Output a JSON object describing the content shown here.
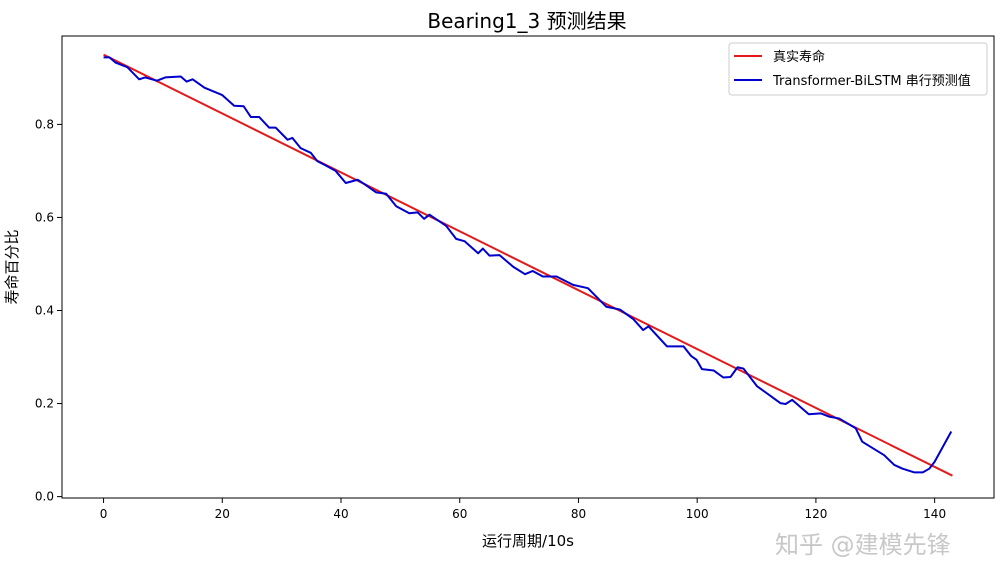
{
  "chart_data": {
    "type": "line",
    "title": "Bearing1_3 预测结果",
    "xlabel": "运行周期/10s",
    "ylabel": "寿命百分比",
    "xlim": [
      -7,
      150
    ],
    "ylim": [
      -0.003,
      0.99
    ],
    "xticks": [
      0,
      20,
      40,
      60,
      80,
      100,
      120,
      140
    ],
    "yticks": [
      0.0,
      0.2,
      0.4,
      0.6,
      0.8
    ],
    "grid": false,
    "legend_position": "top-right",
    "series": [
      {
        "name": "真实寿命",
        "color": "#e31a1c",
        "points": [
          [
            0,
            0.95
          ],
          [
            143,
            0.045
          ]
        ]
      },
      {
        "name": "Transformer-BiLSTM 串行预测值",
        "color": "#0000cc",
        "points": [
          [
            0,
            0.944
          ],
          [
            1,
            0.944
          ],
          [
            2,
            0.933
          ],
          [
            4,
            0.923
          ],
          [
            6,
            0.897
          ],
          [
            7,
            0.901
          ],
          [
            9,
            0.894
          ],
          [
            10.4,
            0.901
          ],
          [
            13,
            0.903
          ],
          [
            14,
            0.892
          ],
          [
            15,
            0.897
          ],
          [
            17,
            0.879
          ],
          [
            20,
            0.863
          ],
          [
            22,
            0.84
          ],
          [
            23.6,
            0.839
          ],
          [
            24.8,
            0.816
          ],
          [
            26.2,
            0.816
          ],
          [
            27.9,
            0.793
          ],
          [
            29,
            0.793
          ],
          [
            31,
            0.767
          ],
          [
            31.8,
            0.771
          ],
          [
            33.2,
            0.749
          ],
          [
            34.9,
            0.739
          ],
          [
            36,
            0.721
          ],
          [
            37.4,
            0.712
          ],
          [
            39.1,
            0.7
          ],
          [
            40.8,
            0.674
          ],
          [
            42.8,
            0.681
          ],
          [
            43.9,
            0.672
          ],
          [
            45.9,
            0.654
          ],
          [
            47.6,
            0.651
          ],
          [
            49.3,
            0.624
          ],
          [
            51.5,
            0.609
          ],
          [
            52.9,
            0.611
          ],
          [
            54,
            0.597
          ],
          [
            54.9,
            0.606
          ],
          [
            57.7,
            0.582
          ],
          [
            59.4,
            0.554
          ],
          [
            60.8,
            0.549
          ],
          [
            63.1,
            0.523
          ],
          [
            63.9,
            0.533
          ],
          [
            65,
            0.518
          ],
          [
            66.7,
            0.519
          ],
          [
            69,
            0.494
          ],
          [
            71,
            0.478
          ],
          [
            72.3,
            0.485
          ],
          [
            74,
            0.473
          ],
          [
            76.3,
            0.473
          ],
          [
            79.1,
            0.455
          ],
          [
            81.6,
            0.448
          ],
          [
            84.7,
            0.408
          ],
          [
            87,
            0.402
          ],
          [
            89.2,
            0.382
          ],
          [
            90.9,
            0.358
          ],
          [
            91.8,
            0.366
          ],
          [
            94.9,
            0.323
          ],
          [
            97.7,
            0.323
          ],
          [
            99,
            0.302
          ],
          [
            99.9,
            0.294
          ],
          [
            100.8,
            0.274
          ],
          [
            102.8,
            0.271
          ],
          [
            104.4,
            0.256
          ],
          [
            105.6,
            0.257
          ],
          [
            106.8,
            0.278
          ],
          [
            107.8,
            0.275
          ],
          [
            110.1,
            0.237
          ],
          [
            112.3,
            0.217
          ],
          [
            114,
            0.201
          ],
          [
            114.9,
            0.199
          ],
          [
            116,
            0.208
          ],
          [
            118.8,
            0.177
          ],
          [
            120.8,
            0.179
          ],
          [
            122.2,
            0.172
          ],
          [
            123.9,
            0.168
          ],
          [
            126.7,
            0.147
          ],
          [
            127.8,
            0.118
          ],
          [
            131.5,
            0.089
          ],
          [
            133.2,
            0.068
          ],
          [
            134.6,
            0.06
          ],
          [
            136.6,
            0.052
          ],
          [
            138,
            0.052
          ],
          [
            139.1,
            0.06
          ],
          [
            140,
            0.075
          ],
          [
            142.8,
            0.14
          ]
        ]
      }
    ]
  },
  "watermark": "知乎 @建模先锋"
}
